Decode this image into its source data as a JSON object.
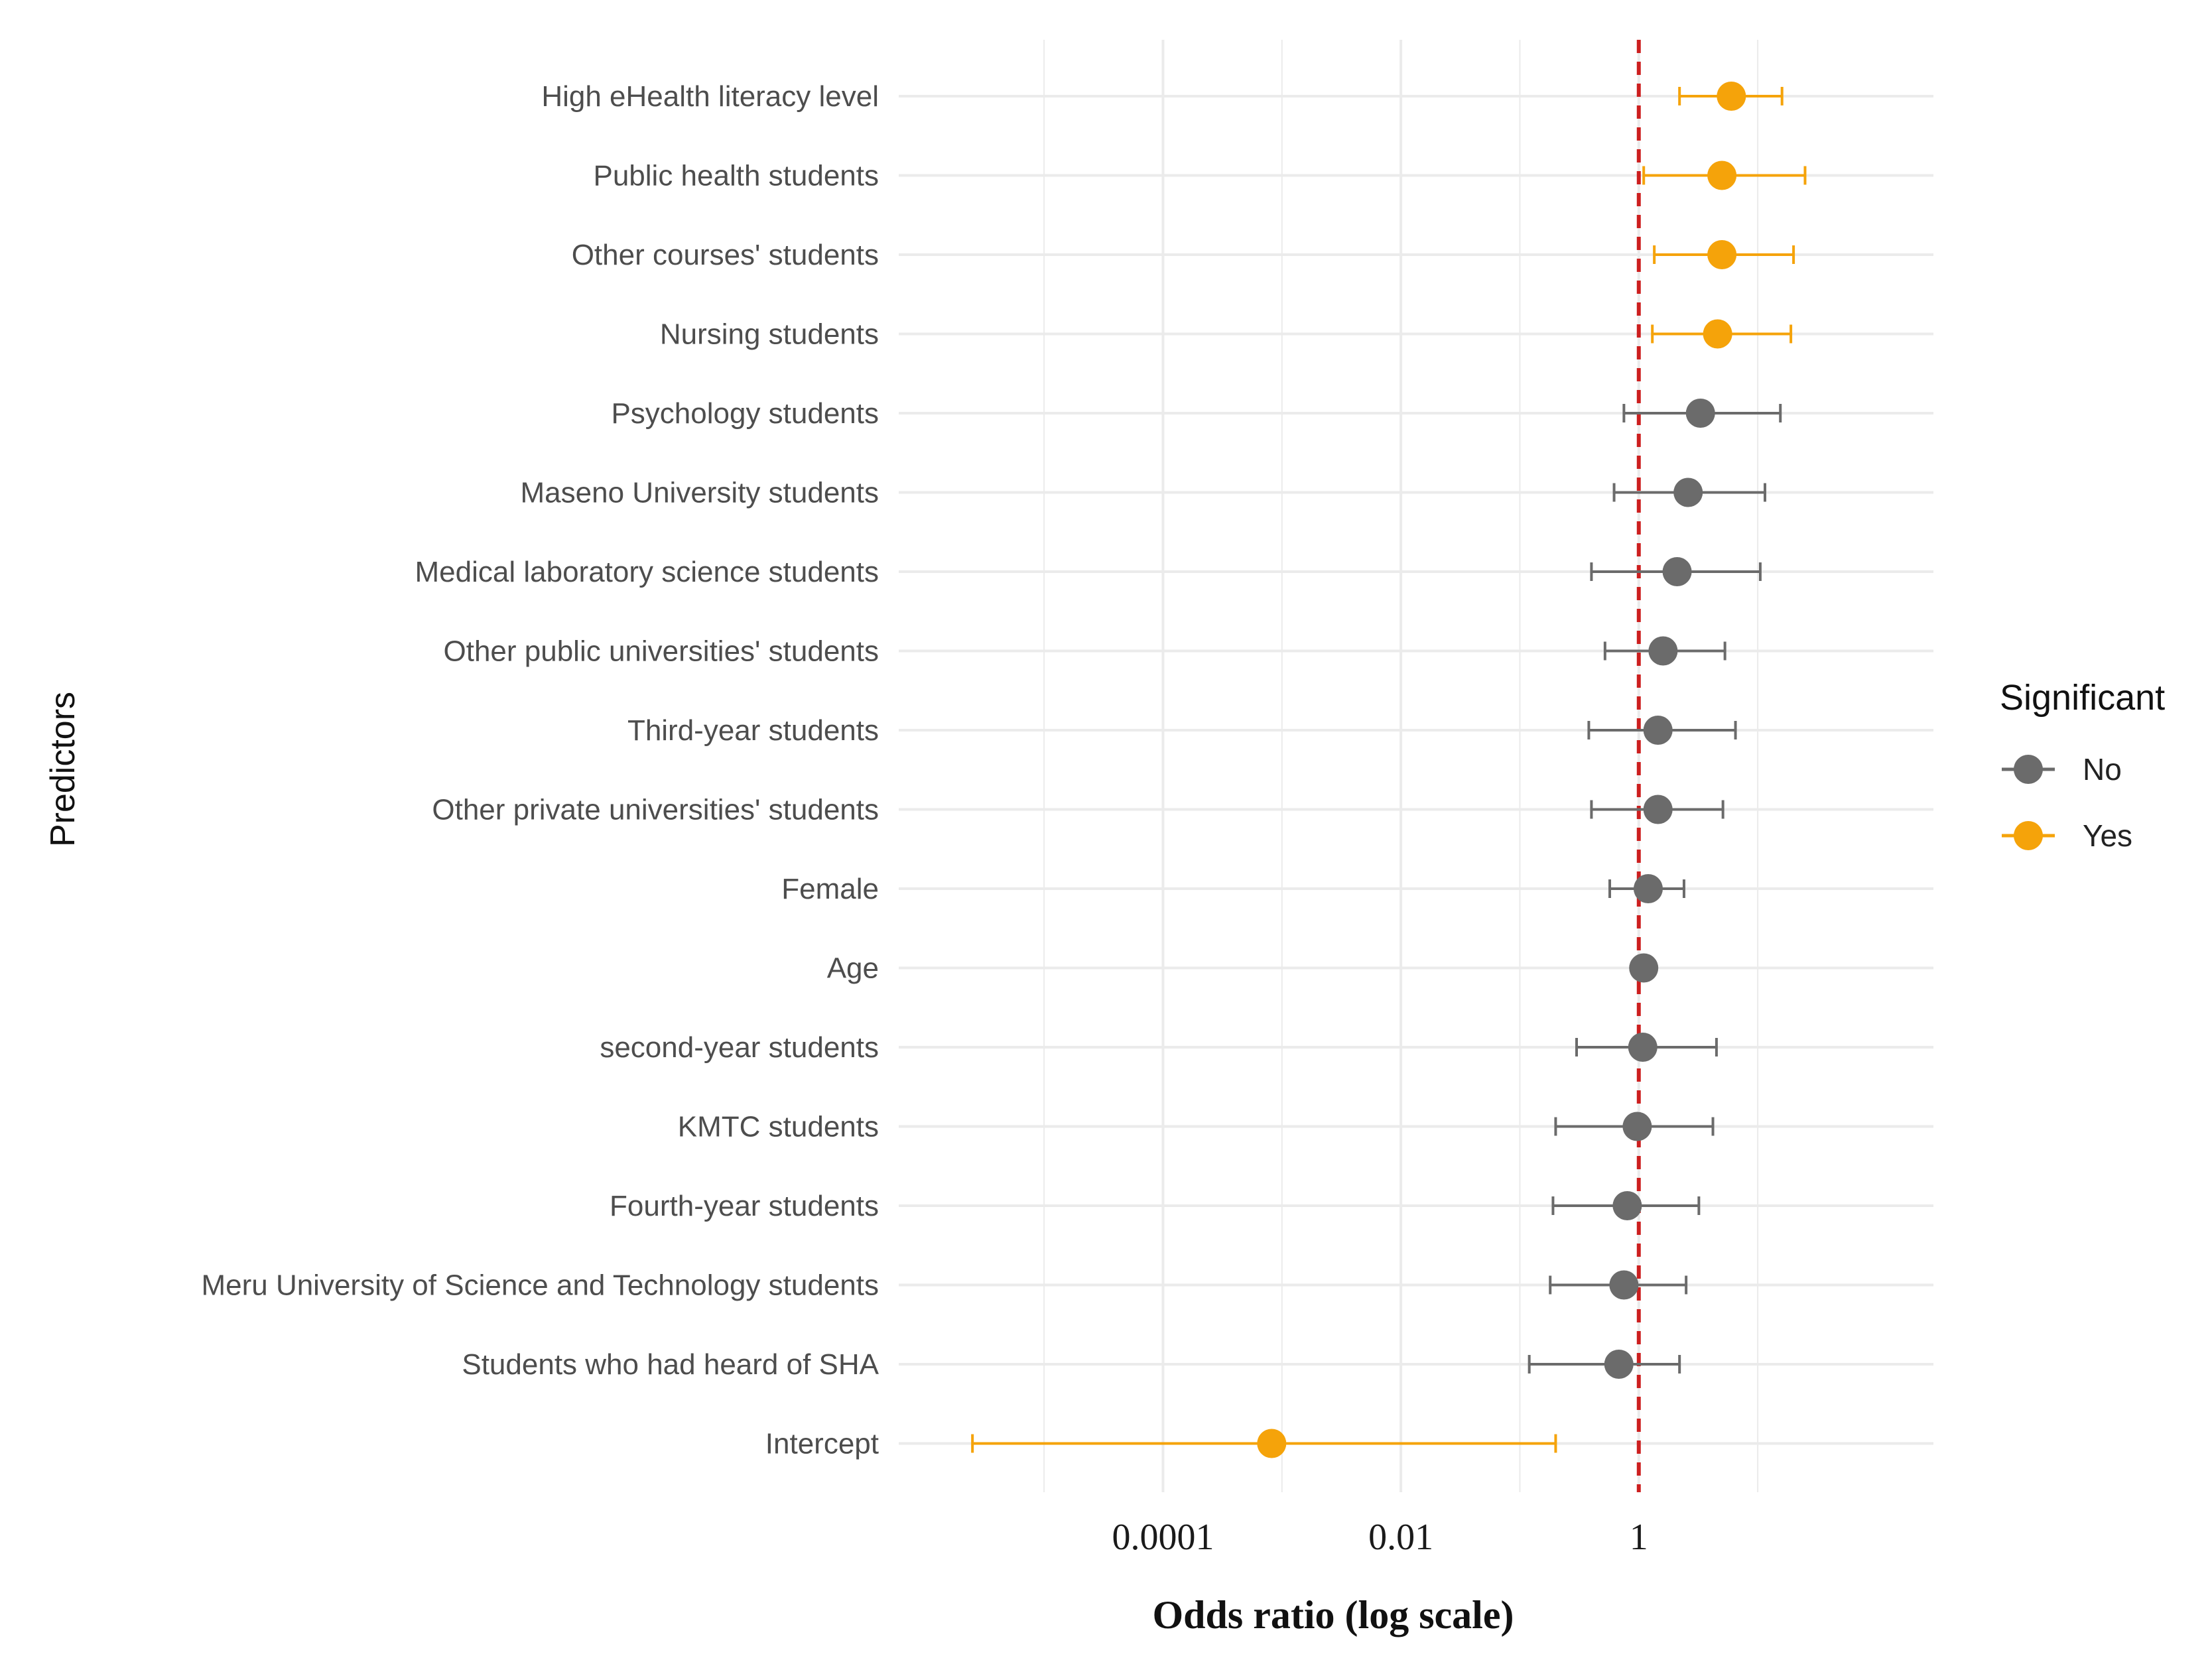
{
  "chart_data": {
    "type": "forest",
    "xlabel": "Odds ratio (log scale)",
    "ylabel": "Predictors",
    "x_scale": "log10",
    "xlim": [
      6e-07,
      300
    ],
    "x_ticks": [
      {
        "value": 0.0001,
        "label": "0.0001"
      },
      {
        "value": 0.01,
        "label": "0.01"
      },
      {
        "value": 1,
        "label": "1"
      }
    ],
    "x_minor_gridlines": [
      1e-05,
      0.001,
      0.1,
      10
    ],
    "reference_line": 1,
    "colors": {
      "No": "#6b6b6b",
      "Yes": "#f5a30a",
      "reference": "#cc1f1f",
      "grid": "#ebebeb"
    },
    "legend": {
      "title": "Significant",
      "position": "right",
      "entries": [
        {
          "key": "No",
          "label": "No"
        },
        {
          "key": "Yes",
          "label": "Yes"
        }
      ]
    },
    "predictors": [
      {
        "label": "High eHealth literacy level",
        "estimate": 6.0,
        "lower": 2.2,
        "upper": 16.0,
        "significant": "Yes"
      },
      {
        "label": "Public health students",
        "estimate": 5.0,
        "lower": 1.1,
        "upper": 25.0,
        "significant": "Yes"
      },
      {
        "label": "Other courses' students",
        "estimate": 5.0,
        "lower": 1.35,
        "upper": 20.0,
        "significant": "Yes"
      },
      {
        "label": "Nursing students",
        "estimate": 4.6,
        "lower": 1.3,
        "upper": 19.0,
        "significant": "Yes"
      },
      {
        "label": "Psychology students",
        "estimate": 3.3,
        "lower": 0.75,
        "upper": 15.5,
        "significant": "No"
      },
      {
        "label": "Maseno University students",
        "estimate": 2.6,
        "lower": 0.62,
        "upper": 11.5,
        "significant": "No"
      },
      {
        "label": "Medical laboratory science students",
        "estimate": 2.1,
        "lower": 0.4,
        "upper": 10.5,
        "significant": "No"
      },
      {
        "label": "Other public universities' students",
        "estimate": 1.6,
        "lower": 0.52,
        "upper": 5.3,
        "significant": "No"
      },
      {
        "label": "Third-year students",
        "estimate": 1.45,
        "lower": 0.38,
        "upper": 6.5,
        "significant": "No"
      },
      {
        "label": "Other private universities' students",
        "estimate": 1.45,
        "lower": 0.4,
        "upper": 5.1,
        "significant": "No"
      },
      {
        "label": "Female",
        "estimate": 1.2,
        "lower": 0.57,
        "upper": 2.4,
        "significant": "No"
      },
      {
        "label": "Age",
        "estimate": 1.1,
        "lower": 0.95,
        "upper": 1.3,
        "significant": "No"
      },
      {
        "label": "second-year students",
        "estimate": 1.08,
        "lower": 0.3,
        "upper": 4.5,
        "significant": "No"
      },
      {
        "label": "KMTC students",
        "estimate": 0.97,
        "lower": 0.2,
        "upper": 4.2,
        "significant": "No"
      },
      {
        "label": "Fourth-year students",
        "estimate": 0.8,
        "lower": 0.19,
        "upper": 3.2,
        "significant": "No"
      },
      {
        "label": "Meru University of Science and Technology students",
        "estimate": 0.75,
        "lower": 0.18,
        "upper": 2.5,
        "significant": "No"
      },
      {
        "label": "Students who had heard of SHA",
        "estimate": 0.68,
        "lower": 0.12,
        "upper": 2.2,
        "significant": "No"
      },
      {
        "label": "Intercept",
        "estimate": 0.00082,
        "lower": 2.5e-06,
        "upper": 0.2,
        "significant": "Yes"
      }
    ]
  }
}
